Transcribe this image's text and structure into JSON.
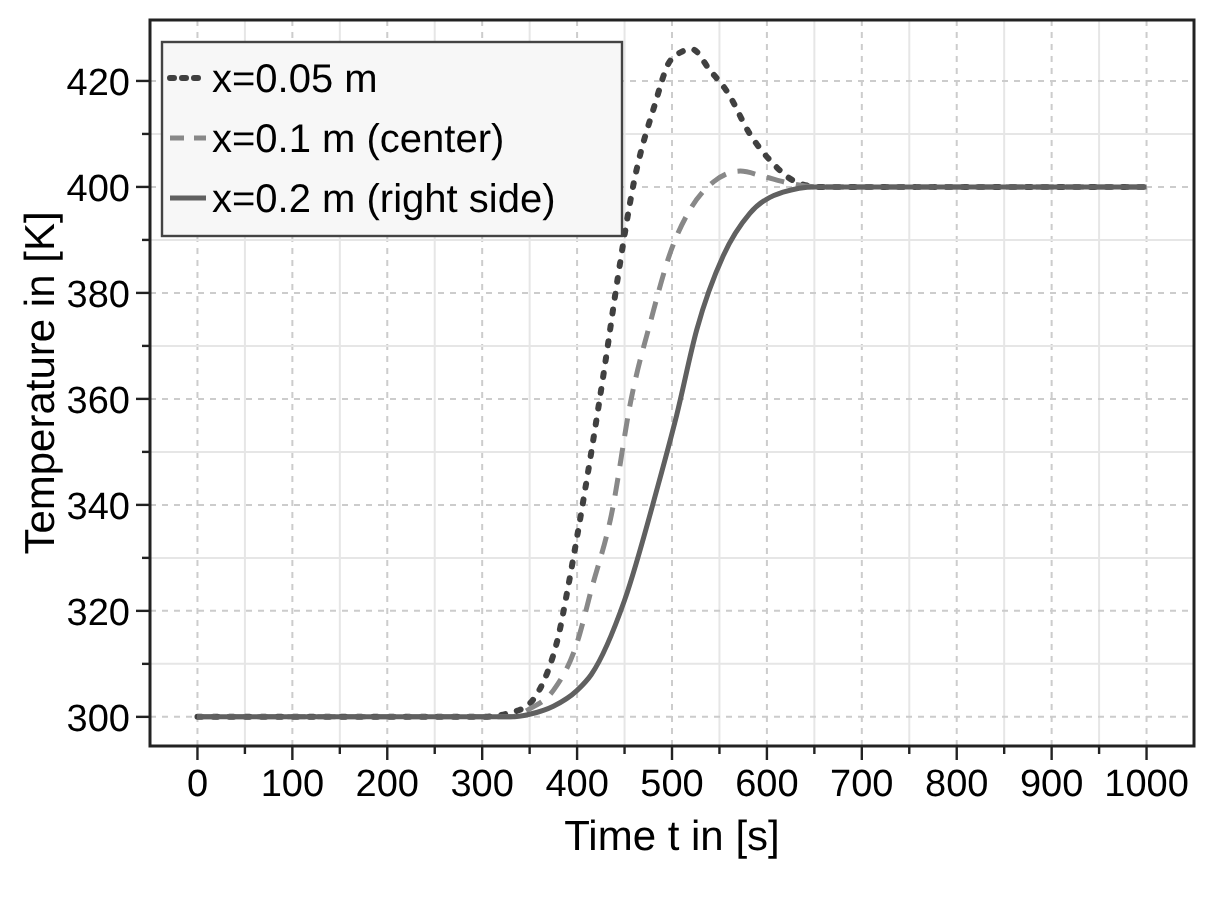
{
  "chart_data": {
    "type": "line",
    "xlabel": "Time t in [s]",
    "ylabel": "Temperature in [K]",
    "xlim": [
      -50,
      1050
    ],
    "ylim": [
      294.5,
      431.5
    ],
    "xticks": [
      0,
      {
        "value": 50,
        "label": null
      },
      100,
      {
        "value": 150,
        "label": null
      },
      200,
      {
        "value": 250,
        "label": null
      },
      300,
      {
        "value": 350,
        "label": null
      },
      400,
      {
        "value": 450,
        "label": null
      },
      500,
      {
        "value": 550,
        "label": null
      },
      600,
      {
        "value": 650,
        "label": null
      },
      700,
      {
        "value": 750,
        "label": null
      },
      800,
      {
        "value": 850,
        "label": null
      },
      900,
      {
        "value": 950,
        "label": null
      },
      1000
    ],
    "yticks": [
      300,
      {
        "value": 310,
        "label": null
      },
      320,
      {
        "value": 330,
        "label": null
      },
      340,
      {
        "value": 350,
        "label": null
      },
      360,
      {
        "value": 370,
        "label": null
      },
      380,
      {
        "value": 390,
        "label": null
      },
      400,
      {
        "value": 410,
        "label": null
      },
      420
    ],
    "grid": true,
    "legend": "top left",
    "series": [
      {
        "name": "x=0.05 m",
        "color": "#404040",
        "line_style": "dotted",
        "x": [
          0,
          300,
          330,
          350,
          360,
          370,
          380,
          390,
          400,
          415,
          429,
          443,
          460,
          481,
          499,
          521,
          540,
          558,
          582,
          606,
          630,
          655,
          700,
          1000
        ],
        "values": [
          300,
          300,
          300.8,
          302.5,
          305,
          309,
          315,
          324,
          334,
          350,
          366,
          383,
          401,
          415,
          424,
          426,
          422,
          418,
          410,
          404.5,
          401,
          400,
          400,
          400
        ]
      },
      {
        "name": "x=0.1 m (center)",
        "color": "#888888",
        "line_style": "dashed",
        "x": [
          0,
          330,
          350,
          375,
          400,
          415,
          436,
          457,
          478,
          499,
          520,
          544,
          572,
          596,
          624,
          655,
          700,
          1000
        ],
        "values": [
          300,
          300,
          301.5,
          305,
          314,
          324,
          338,
          360,
          375,
          388,
          396,
          401,
          403,
          402,
          400.7,
          400,
          400,
          400
        ]
      },
      {
        "name": "x=0.2 m (right side)",
        "color": "#606060",
        "line_style": "solid",
        "x": [
          0,
          330,
          350,
          375,
          400,
          415,
          450,
          485,
          505,
          526,
          554,
          582,
          617,
          651,
          700,
          1000
        ],
        "values": [
          300,
          300,
          300.5,
          302,
          305,
          308,
          322,
          343.5,
          357,
          373,
          387,
          395,
          399,
          400,
          400,
          400
        ]
      }
    ]
  }
}
